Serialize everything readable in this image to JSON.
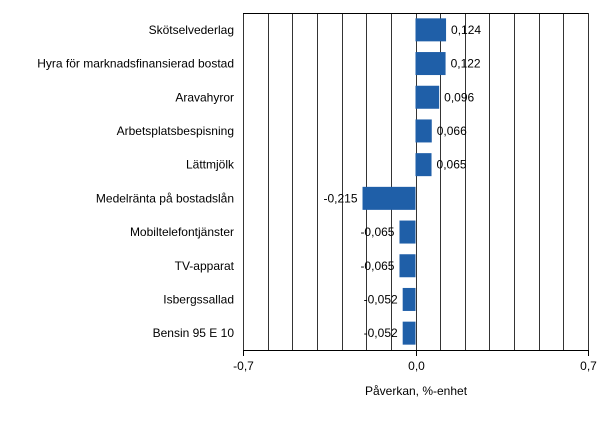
{
  "chart_data": {
    "type": "bar",
    "orientation": "horizontal",
    "categories": [
      "Skötselvederlag",
      "Hyra för marknadsfinansierad bostad",
      "Aravahyror",
      "Arbetsplatsbespisning",
      "Lättmjölk",
      "Medelränta på bostadslån",
      "Mobiltelefontjänster",
      "TV-apparat",
      "Isbergssallad",
      "Bensin 95 E 10"
    ],
    "values": [
      0.124,
      0.122,
      0.096,
      0.066,
      0.065,
      -0.215,
      -0.065,
      -0.065,
      -0.052,
      -0.052
    ],
    "value_labels": [
      "0,124",
      "0,122",
      "0,096",
      "0,066",
      "0,065",
      "-0,215",
      "-0,065",
      "-0,065",
      "-0,052",
      "-0,052"
    ],
    "xlabel": "Påverkan, %-enhet",
    "ylabel": "",
    "title": "",
    "xlim": [
      -0.7,
      0.7
    ],
    "x_ticks": [
      -0.7,
      0.0,
      0.7
    ],
    "x_tick_labels": [
      "-0,7",
      "0,0",
      "0,7"
    ],
    "x_gridline_step": 0.1,
    "grid": true,
    "legend": "none",
    "colors": {
      "bar": "#1f5fa8",
      "grid": "#000000",
      "axis": "#000000",
      "text": "#000000"
    }
  }
}
